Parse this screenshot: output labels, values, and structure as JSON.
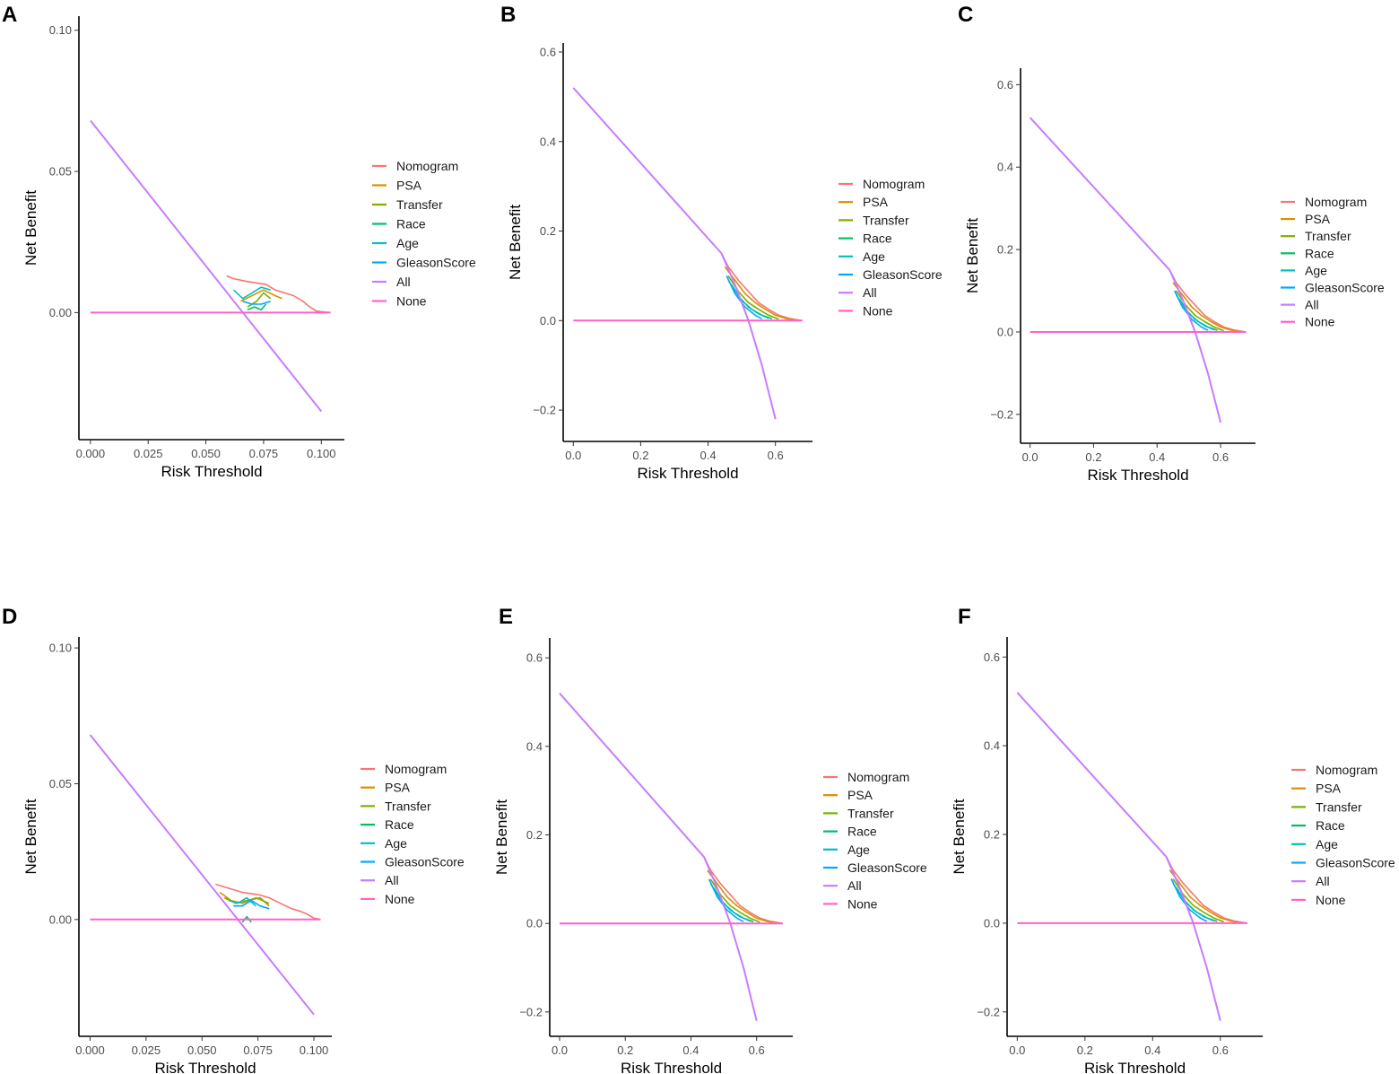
{
  "figure": {
    "legend_entries": [
      {
        "name": "Nomogram",
        "color": "#F8766D"
      },
      {
        "name": "PSA",
        "color": "#D89000"
      },
      {
        "name": "Transfer",
        "color": "#7CAE00"
      },
      {
        "name": "Race",
        "color": "#00BE67"
      },
      {
        "name": "Age",
        "color": "#00BFC4"
      },
      {
        "name": "GleasonScore",
        "color": "#00A9FF"
      },
      {
        "name": "All",
        "color": "#C77CFF"
      },
      {
        "name": "None",
        "color": "#FF61CC"
      }
    ]
  },
  "chart_data": [
    {
      "panel": "A",
      "type": "line",
      "xlabel": "Risk Threshold",
      "ylabel": "Net Benefit",
      "xlim": [
        -0.005,
        0.11
      ],
      "ylim": [
        -0.045,
        0.105
      ],
      "xticks": [
        0,
        0.025,
        0.05,
        0.075,
        0.1
      ],
      "xtick_labels": [
        "0.000",
        "0.025",
        "0.050",
        "0.075",
        "0.100"
      ],
      "yticks": [
        0,
        0.05,
        0.1
      ],
      "ytick_labels": [
        "0.00",
        "0.05",
        "0.10"
      ],
      "legend": [
        "Nomogram",
        "PSA",
        "Transfer",
        "Race",
        "Age",
        "GleasonScore",
        "All",
        "None"
      ],
      "series": [
        {
          "name": "Nomogram",
          "x": [
            0.059,
            0.062,
            0.065,
            0.068,
            0.072,
            0.076,
            0.08,
            0.084,
            0.088,
            0.092,
            0.095,
            0.098,
            0.104
          ],
          "y": [
            0.013,
            0.012,
            0.0115,
            0.011,
            0.0105,
            0.01,
            0.008,
            0.007,
            0.006,
            0.004,
            0.002,
            0.0005,
            0.0
          ]
        },
        {
          "name": "PSA",
          "x": [
            0.065,
            0.07,
            0.075,
            0.08,
            0.083
          ],
          "y": [
            0.004,
            0.006,
            0.008,
            0.006,
            0.005
          ]
        },
        {
          "name": "Transfer",
          "x": [
            0.068,
            0.072,
            0.075,
            0.078
          ],
          "y": [
            0.002,
            0.004,
            0.007,
            0.005
          ]
        },
        {
          "name": "Race",
          "x": [
            0.068,
            0.071,
            0.074,
            0.076
          ],
          "y": [
            0.001,
            0.002,
            0.001,
            0.003
          ]
        },
        {
          "name": "Age",
          "x": [
            0.062,
            0.066,
            0.07,
            0.074,
            0.078
          ],
          "y": [
            0.008,
            0.005,
            0.007,
            0.009,
            0.008
          ]
        },
        {
          "name": "GleasonScore",
          "x": [
            0.066,
            0.07,
            0.074,
            0.078
          ],
          "y": [
            0.004,
            0.003,
            0.003,
            0.004
          ]
        },
        {
          "name": "All",
          "x": [
            0.0,
            0.1
          ],
          "y": [
            0.068,
            -0.035
          ]
        },
        {
          "name": "None",
          "x": [
            0.0,
            0.104
          ],
          "y": [
            0.0,
            0.0
          ]
        }
      ]
    },
    {
      "panel": "B",
      "type": "line",
      "xlabel": "Risk Threshold",
      "ylabel": "Net Benefit",
      "xlim": [
        -0.03,
        0.71
      ],
      "ylim": [
        -0.27,
        0.62
      ],
      "xticks": [
        0,
        0.2,
        0.4,
        0.6
      ],
      "xtick_labels": [
        "0.0",
        "0.2",
        "0.4",
        "0.6"
      ],
      "yticks": [
        -0.2,
        0,
        0.2,
        0.4,
        0.6
      ],
      "ytick_labels": [
        "−0.2",
        "0.0",
        "0.2",
        "0.4",
        "0.6"
      ],
      "legend": [
        "Nomogram",
        "PSA",
        "Transfer",
        "Race",
        "Age",
        "GleasonScore",
        "All",
        "None"
      ],
      "series": [
        {
          "name": "Nomogram",
          "x": [
            0.44,
            0.46,
            0.49,
            0.52,
            0.55,
            0.58,
            0.61,
            0.64,
            0.68
          ],
          "y": [
            0.15,
            0.12,
            0.09,
            0.065,
            0.04,
            0.025,
            0.012,
            0.005,
            0.0
          ]
        },
        {
          "name": "PSA",
          "x": [
            0.45,
            0.48,
            0.51,
            0.54,
            0.57,
            0.6,
            0.63,
            0.66
          ],
          "y": [
            0.12,
            0.09,
            0.06,
            0.04,
            0.025,
            0.012,
            0.005,
            0.0
          ]
        },
        {
          "name": "Transfer",
          "x": [
            0.46,
            0.49,
            0.52,
            0.55,
            0.58,
            0.61
          ],
          "y": [
            0.1,
            0.065,
            0.04,
            0.025,
            0.012,
            0.003
          ]
        },
        {
          "name": "Race",
          "x": [
            0.47,
            0.5,
            0.53,
            0.56,
            0.59
          ],
          "y": [
            0.08,
            0.045,
            0.025,
            0.012,
            0.004
          ]
        },
        {
          "name": "Age",
          "x": [
            0.46,
            0.49,
            0.52,
            0.55,
            0.58
          ],
          "y": [
            0.09,
            0.055,
            0.03,
            0.015,
            0.005
          ]
        },
        {
          "name": "GleasonScore",
          "x": [
            0.455,
            0.48,
            0.51,
            0.54,
            0.56
          ],
          "y": [
            0.1,
            0.06,
            0.03,
            0.012,
            0.004
          ]
        },
        {
          "name": "All",
          "x": [
            0.0,
            0.44,
            0.48,
            0.52,
            0.56,
            0.6
          ],
          "y": [
            0.52,
            0.15,
            0.08,
            0.0,
            -0.1,
            -0.22
          ]
        },
        {
          "name": "None",
          "x": [
            0.0,
            0.68
          ],
          "y": [
            0.0,
            0.0
          ]
        }
      ]
    },
    {
      "panel": "C",
      "type": "line",
      "xlabel": "Risk Threshold",
      "ylabel": "Net Benefit",
      "xlim": [
        -0.03,
        0.71
      ],
      "ylim": [
        -0.27,
        0.64
      ],
      "xticks": [
        0,
        0.2,
        0.4,
        0.6
      ],
      "xtick_labels": [
        "0.0",
        "0.2",
        "0.4",
        "0.6"
      ],
      "yticks": [
        -0.2,
        0,
        0.2,
        0.4,
        0.6
      ],
      "ytick_labels": [
        "−0.2",
        "0.0",
        "0.2",
        "0.4",
        "0.6"
      ],
      "legend": [
        "Nomogram",
        "PSA",
        "Transfer",
        "Race",
        "Age",
        "GleasonScore",
        "All",
        "None"
      ],
      "series": [
        {
          "name": "Nomogram",
          "x": [
            0.44,
            0.46,
            0.49,
            0.52,
            0.55,
            0.58,
            0.61,
            0.64,
            0.68
          ],
          "y": [
            0.15,
            0.12,
            0.09,
            0.065,
            0.04,
            0.025,
            0.012,
            0.005,
            0.0
          ]
        },
        {
          "name": "PSA",
          "x": [
            0.45,
            0.48,
            0.51,
            0.54,
            0.57,
            0.6,
            0.63,
            0.66
          ],
          "y": [
            0.12,
            0.09,
            0.06,
            0.04,
            0.025,
            0.012,
            0.005,
            0.0
          ]
        },
        {
          "name": "Transfer",
          "x": [
            0.46,
            0.49,
            0.52,
            0.55,
            0.58,
            0.61
          ],
          "y": [
            0.1,
            0.065,
            0.04,
            0.025,
            0.012,
            0.003
          ]
        },
        {
          "name": "Race",
          "x": [
            0.47,
            0.5,
            0.53,
            0.56,
            0.59
          ],
          "y": [
            0.08,
            0.045,
            0.025,
            0.012,
            0.004
          ]
        },
        {
          "name": "Age",
          "x": [
            0.46,
            0.49,
            0.52,
            0.55,
            0.58
          ],
          "y": [
            0.09,
            0.055,
            0.03,
            0.015,
            0.005
          ]
        },
        {
          "name": "GleasonScore",
          "x": [
            0.455,
            0.48,
            0.51,
            0.54,
            0.56
          ],
          "y": [
            0.1,
            0.06,
            0.03,
            0.012,
            0.004
          ]
        },
        {
          "name": "All",
          "x": [
            0.0,
            0.44,
            0.48,
            0.52,
            0.56,
            0.6
          ],
          "y": [
            0.52,
            0.15,
            0.08,
            0.0,
            -0.1,
            -0.22
          ]
        },
        {
          "name": "None",
          "x": [
            0.0,
            0.68
          ],
          "y": [
            0.0,
            0.0
          ]
        }
      ]
    },
    {
      "panel": "D",
      "type": "line",
      "xlabel": "Risk Threshold",
      "ylabel": "Net Benefit",
      "xlim": [
        -0.005,
        0.108
      ],
      "ylim": [
        -0.043,
        0.104
      ],
      "xticks": [
        0,
        0.025,
        0.05,
        0.075,
        0.1
      ],
      "xtick_labels": [
        "0.000",
        "0.025",
        "0.050",
        "0.075",
        "0.100"
      ],
      "yticks": [
        0,
        0.05,
        0.1
      ],
      "ytick_labels": [
        "0.00",
        "0.05",
        "0.10"
      ],
      "legend": [
        "Nomogram",
        "PSA",
        "Transfer",
        "Race",
        "Age",
        "GleasonScore",
        "All",
        "None"
      ],
      "series": [
        {
          "name": "Nomogram",
          "x": [
            0.056,
            0.06,
            0.064,
            0.068,
            0.072,
            0.076,
            0.08,
            0.085,
            0.09,
            0.094,
            0.097,
            0.1,
            0.103
          ],
          "y": [
            0.013,
            0.012,
            0.011,
            0.01,
            0.0095,
            0.009,
            0.008,
            0.006,
            0.004,
            0.003,
            0.002,
            0.0005,
            0.0
          ]
        },
        {
          "name": "PSA",
          "x": [
            0.058,
            0.063,
            0.068,
            0.074,
            0.08
          ],
          "y": [
            0.01,
            0.007,
            0.006,
            0.008,
            0.006
          ]
        },
        {
          "name": "Transfer",
          "x": [
            0.06,
            0.065,
            0.07,
            0.076,
            0.08
          ],
          "y": [
            0.008,
            0.006,
            0.007,
            0.008,
            0.005
          ]
        },
        {
          "name": "Race",
          "x": [
            0.068,
            0.07,
            0.072
          ],
          "y": [
            -0.001,
            0.001,
            -0.001
          ]
        },
        {
          "name": "Age",
          "x": [
            0.062,
            0.066,
            0.07,
            0.074
          ],
          "y": [
            0.007,
            0.006,
            0.008,
            0.005
          ]
        },
        {
          "name": "GleasonScore",
          "x": [
            0.064,
            0.068,
            0.072,
            0.076,
            0.08
          ],
          "y": [
            0.005,
            0.005,
            0.007,
            0.005,
            0.004
          ]
        },
        {
          "name": "All",
          "x": [
            0.0,
            0.1
          ],
          "y": [
            0.068,
            -0.035
          ]
        },
        {
          "name": "None",
          "x": [
            0.0,
            0.103
          ],
          "y": [
            0.0,
            0.0
          ]
        }
      ]
    },
    {
      "panel": "E",
      "type": "line",
      "xlabel": "Risk Threshold",
      "ylabel": "Net Benefit",
      "xlim": [
        -0.03,
        0.71
      ],
      "ylim": [
        -0.255,
        0.645
      ],
      "xticks": [
        0,
        0.2,
        0.4,
        0.6
      ],
      "xtick_labels": [
        "0.0",
        "0.2",
        "0.4",
        "0.6"
      ],
      "yticks": [
        -0.2,
        0,
        0.2,
        0.4,
        0.6
      ],
      "ytick_labels": [
        "−0.2",
        "0.0",
        "0.2",
        "0.4",
        "0.6"
      ],
      "legend": [
        "Nomogram",
        "PSA",
        "Transfer",
        "Race",
        "Age",
        "GleasonScore",
        "All",
        "None"
      ],
      "series": [
        {
          "name": "Nomogram",
          "x": [
            0.44,
            0.46,
            0.49,
            0.52,
            0.55,
            0.58,
            0.61,
            0.64,
            0.68
          ],
          "y": [
            0.15,
            0.12,
            0.09,
            0.065,
            0.04,
            0.025,
            0.012,
            0.005,
            0.0
          ]
        },
        {
          "name": "PSA",
          "x": [
            0.45,
            0.48,
            0.51,
            0.54,
            0.57,
            0.6,
            0.63,
            0.66
          ],
          "y": [
            0.12,
            0.09,
            0.06,
            0.04,
            0.025,
            0.012,
            0.005,
            0.0
          ]
        },
        {
          "name": "Transfer",
          "x": [
            0.46,
            0.49,
            0.52,
            0.55,
            0.58,
            0.61
          ],
          "y": [
            0.1,
            0.065,
            0.04,
            0.025,
            0.012,
            0.003
          ]
        },
        {
          "name": "Race",
          "x": [
            0.47,
            0.5,
            0.53,
            0.56,
            0.59
          ],
          "y": [
            0.08,
            0.045,
            0.025,
            0.012,
            0.004
          ]
        },
        {
          "name": "Age",
          "x": [
            0.46,
            0.49,
            0.52,
            0.55,
            0.58
          ],
          "y": [
            0.09,
            0.055,
            0.03,
            0.015,
            0.005
          ]
        },
        {
          "name": "GleasonScore",
          "x": [
            0.455,
            0.48,
            0.51,
            0.54,
            0.56
          ],
          "y": [
            0.1,
            0.06,
            0.03,
            0.012,
            0.004
          ]
        },
        {
          "name": "All",
          "x": [
            0.0,
            0.44,
            0.48,
            0.52,
            0.56,
            0.6
          ],
          "y": [
            0.52,
            0.15,
            0.08,
            0.0,
            -0.1,
            -0.22
          ]
        },
        {
          "name": "None",
          "x": [
            0.0,
            0.68
          ],
          "y": [
            0.0,
            0.0
          ]
        }
      ]
    },
    {
      "panel": "F",
      "type": "line",
      "xlabel": "Risk Threshold",
      "ylabel": "Net Benefit",
      "xlim": [
        -0.03,
        0.725
      ],
      "ylim": [
        -0.255,
        0.645
      ],
      "xticks": [
        0,
        0.2,
        0.4,
        0.6
      ],
      "xtick_labels": [
        "0.0",
        "0.2",
        "0.4",
        "0.6"
      ],
      "yticks": [
        -0.2,
        0,
        0.2,
        0.4,
        0.6
      ],
      "ytick_labels": [
        "−0.2",
        "0.0",
        "0.2",
        "0.4",
        "0.6"
      ],
      "legend": [
        "Nomogram",
        "PSA",
        "Transfer",
        "Race",
        "Age",
        "GleasonScore",
        "All",
        "None"
      ],
      "series": [
        {
          "name": "Nomogram",
          "x": [
            0.44,
            0.46,
            0.49,
            0.52,
            0.55,
            0.58,
            0.61,
            0.64,
            0.68
          ],
          "y": [
            0.15,
            0.12,
            0.09,
            0.065,
            0.04,
            0.025,
            0.012,
            0.005,
            0.0
          ]
        },
        {
          "name": "PSA",
          "x": [
            0.45,
            0.48,
            0.51,
            0.54,
            0.57,
            0.6,
            0.63,
            0.66
          ],
          "y": [
            0.12,
            0.09,
            0.06,
            0.04,
            0.025,
            0.012,
            0.005,
            0.0
          ]
        },
        {
          "name": "Transfer",
          "x": [
            0.46,
            0.49,
            0.52,
            0.55,
            0.58,
            0.61
          ],
          "y": [
            0.1,
            0.065,
            0.04,
            0.025,
            0.012,
            0.003
          ]
        },
        {
          "name": "Race",
          "x": [
            0.47,
            0.5,
            0.53,
            0.56,
            0.59
          ],
          "y": [
            0.08,
            0.045,
            0.025,
            0.012,
            0.004
          ]
        },
        {
          "name": "Age",
          "x": [
            0.46,
            0.49,
            0.52,
            0.55,
            0.58
          ],
          "y": [
            0.09,
            0.055,
            0.03,
            0.015,
            0.005
          ]
        },
        {
          "name": "GleasonScore",
          "x": [
            0.455,
            0.48,
            0.51,
            0.54,
            0.56
          ],
          "y": [
            0.1,
            0.06,
            0.03,
            0.012,
            0.004
          ]
        },
        {
          "name": "All",
          "x": [
            0.0,
            0.44,
            0.48,
            0.52,
            0.56,
            0.6
          ],
          "y": [
            0.52,
            0.15,
            0.08,
            0.0,
            -0.1,
            -0.22
          ]
        },
        {
          "name": "None",
          "x": [
            0.0,
            0.68
          ],
          "y": [
            0.0,
            0.0
          ]
        }
      ]
    }
  ]
}
